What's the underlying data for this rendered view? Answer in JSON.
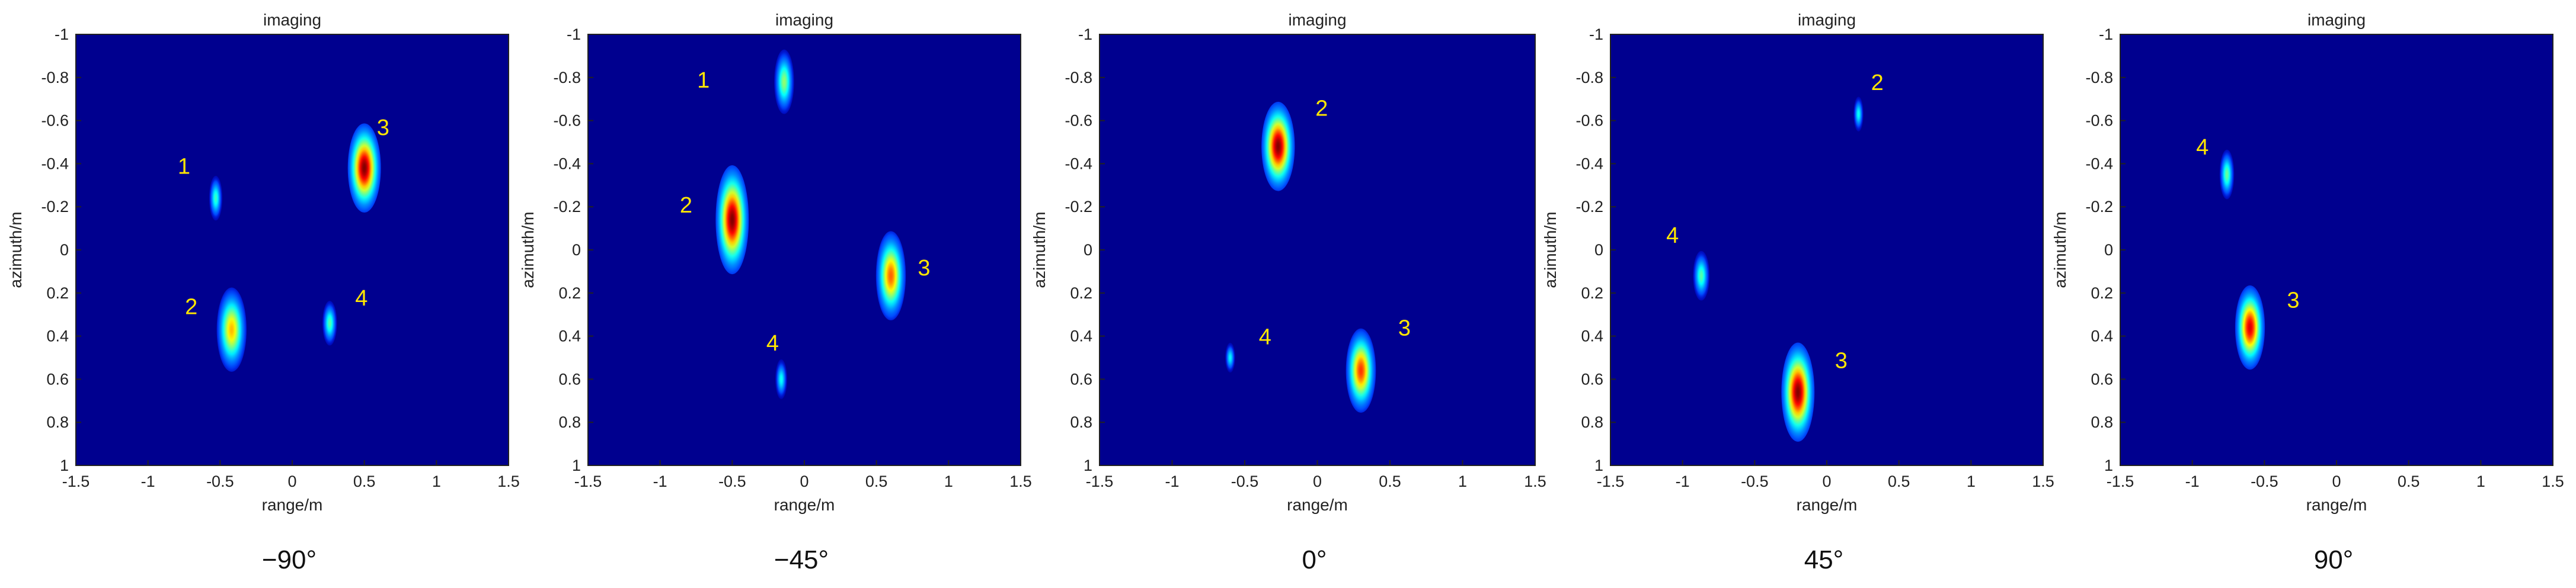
{
  "chart_data": [
    {
      "type": "heatmap",
      "title": "imaging",
      "xlabel": "range/m",
      "ylabel": "azimuth/m",
      "xlim": [
        -1.5,
        1.5
      ],
      "ylim": [
        -1,
        1
      ],
      "y_axis_inverted": true,
      "xticks": [
        "-1.5",
        "-1",
        "-0.5",
        "0",
        "0.5",
        "1",
        "1.5"
      ],
      "yticks": [
        "-1",
        "-0.8",
        "-0.6",
        "-0.4",
        "-0.2",
        "0",
        "0.2",
        "0.4",
        "0.6",
        "0.8",
        "1"
      ],
      "colormap": "jet",
      "background_color": "#00008f",
      "angle_caption": "−90°",
      "targets": [
        {
          "label": "1",
          "x": -0.53,
          "y": -0.24,
          "sx": 0.02,
          "sy": 0.045,
          "peak": 0.35
        },
        {
          "label": "3",
          "x": 0.5,
          "y": -0.38,
          "sx": 0.05,
          "sy": 0.09,
          "peak": 1.0
        },
        {
          "label": "2",
          "x": -0.42,
          "y": 0.37,
          "sx": 0.045,
          "sy": 0.085,
          "peak": 0.65
        },
        {
          "label": "4",
          "x": 0.26,
          "y": 0.34,
          "sx": 0.022,
          "sy": 0.045,
          "peak": 0.38
        }
      ],
      "target_labels": [
        {
          "text": "1",
          "x": -0.75,
          "y": -0.38
        },
        {
          "text": "3",
          "x": 0.63,
          "y": -0.56
        },
        {
          "text": "2",
          "x": -0.7,
          "y": 0.27
        },
        {
          "text": "4",
          "x": 0.48,
          "y": 0.23
        }
      ]
    },
    {
      "type": "heatmap",
      "title": "imaging",
      "xlabel": "range/m",
      "ylabel": "azimuth/m",
      "xlim": [
        -1.5,
        1.5
      ],
      "ylim": [
        -1,
        1
      ],
      "y_axis_inverted": true,
      "xticks": [
        "-1.5",
        "-1",
        "-0.5",
        "0",
        "0.5",
        "1",
        "1.5"
      ],
      "yticks": [
        "-1",
        "-0.8",
        "-0.6",
        "-0.4",
        "-0.2",
        "0",
        "0.2",
        "0.4",
        "0.6",
        "0.8",
        "1"
      ],
      "colormap": "jet",
      "background_color": "#00008f",
      "angle_caption": "−45°",
      "targets": [
        {
          "label": "1",
          "x": -0.14,
          "y": -0.78,
          "sx": 0.03,
          "sy": 0.065,
          "peak": 0.45
        },
        {
          "label": "2",
          "x": -0.5,
          "y": -0.14,
          "sx": 0.05,
          "sy": 0.11,
          "peak": 1.0
        },
        {
          "label": "3",
          "x": 0.6,
          "y": 0.12,
          "sx": 0.045,
          "sy": 0.09,
          "peak": 0.75
        },
        {
          "label": "4",
          "x": -0.16,
          "y": 0.6,
          "sx": 0.018,
          "sy": 0.04,
          "peak": 0.3
        }
      ],
      "target_labels": [
        {
          "text": "1",
          "x": -0.7,
          "y": -0.78
        },
        {
          "text": "2",
          "x": -0.82,
          "y": -0.2
        },
        {
          "text": "3",
          "x": 0.83,
          "y": 0.09
        },
        {
          "text": "4",
          "x": -0.22,
          "y": 0.44
        }
      ]
    },
    {
      "type": "heatmap",
      "title": "imaging",
      "xlabel": "range/m",
      "ylabel": "azimuth/m",
      "xlim": [
        -1.5,
        1.5
      ],
      "ylim": [
        -1,
        1
      ],
      "y_axis_inverted": true,
      "xticks": [
        "-1.5",
        "-1",
        "-0.5",
        "0",
        "0.5",
        "1",
        "1.5"
      ],
      "yticks": [
        "-1",
        "-0.8",
        "-0.6",
        "-0.4",
        "-0.2",
        "0",
        "0.2",
        "0.4",
        "0.6",
        "0.8",
        "1"
      ],
      "colormap": "jet",
      "background_color": "#00008f",
      "angle_caption": "0°",
      "targets": [
        {
          "label": "2",
          "x": -0.27,
          "y": -0.48,
          "sx": 0.05,
          "sy": 0.09,
          "peak": 1.0
        },
        {
          "label": "3",
          "x": 0.3,
          "y": 0.56,
          "sx": 0.045,
          "sy": 0.085,
          "peak": 0.8
        },
        {
          "label": "4",
          "x": -0.6,
          "y": 0.5,
          "sx": 0.015,
          "sy": 0.03,
          "peak": 0.28
        }
      ],
      "target_labels": [
        {
          "text": "2",
          "x": 0.03,
          "y": -0.65
        },
        {
          "text": "3",
          "x": 0.6,
          "y": 0.37
        },
        {
          "text": "4",
          "x": -0.36,
          "y": 0.41
        }
      ]
    },
    {
      "type": "heatmap",
      "title": "imaging",
      "xlabel": "range/m",
      "ylabel": "azimuth/m",
      "xlim": [
        -1.5,
        1.5
      ],
      "ylim": [
        -1,
        1
      ],
      "y_axis_inverted": true,
      "xticks": [
        "-1.5",
        "-1",
        "-0.5",
        "0",
        "0.5",
        "1",
        "1.5"
      ],
      "yticks": [
        "-1",
        "-0.8",
        "-0.6",
        "-0.4",
        "-0.2",
        "0",
        "0.2",
        "0.4",
        "0.6",
        "0.8",
        "1"
      ],
      "colormap": "jet",
      "background_color": "#00008f",
      "angle_caption": "45°",
      "targets": [
        {
          "label": "2",
          "x": 0.22,
          "y": -0.63,
          "sx": 0.015,
          "sy": 0.035,
          "peak": 0.3
        },
        {
          "label": "4",
          "x": -0.87,
          "y": 0.12,
          "sx": 0.025,
          "sy": 0.05,
          "peak": 0.38
        },
        {
          "label": "3",
          "x": -0.2,
          "y": 0.66,
          "sx": 0.05,
          "sy": 0.1,
          "peak": 1.0
        }
      ],
      "target_labels": [
        {
          "text": "2",
          "x": 0.35,
          "y": -0.77
        },
        {
          "text": "4",
          "x": -1.07,
          "y": -0.06
        },
        {
          "text": "3",
          "x": 0.1,
          "y": 0.52
        }
      ]
    },
    {
      "type": "heatmap",
      "title": "imaging",
      "xlabel": "range/m",
      "ylabel": "azimuth/m",
      "xlim": [
        -1.5,
        1.5
      ],
      "ylim": [
        -1,
        1
      ],
      "y_axis_inverted": true,
      "xticks": [
        "-1.5",
        "-1",
        "-0.5",
        "0",
        "0.5",
        "1",
        "1.5"
      ],
      "yticks": [
        "-1",
        "-0.8",
        "-0.6",
        "-0.4",
        "-0.2",
        "0",
        "0.2",
        "0.4",
        "0.6",
        "0.8",
        "1"
      ],
      "colormap": "jet",
      "background_color": "#00008f",
      "angle_caption": "90°",
      "targets": [
        {
          "label": "4",
          "x": -0.76,
          "y": -0.35,
          "sx": 0.022,
          "sy": 0.05,
          "peak": 0.4
        },
        {
          "label": "3",
          "x": -0.6,
          "y": 0.36,
          "sx": 0.045,
          "sy": 0.085,
          "peak": 0.9
        }
      ],
      "target_labels": [
        {
          "text": "4",
          "x": -0.93,
          "y": -0.47
        },
        {
          "text": "3",
          "x": -0.3,
          "y": 0.24
        }
      ]
    }
  ]
}
